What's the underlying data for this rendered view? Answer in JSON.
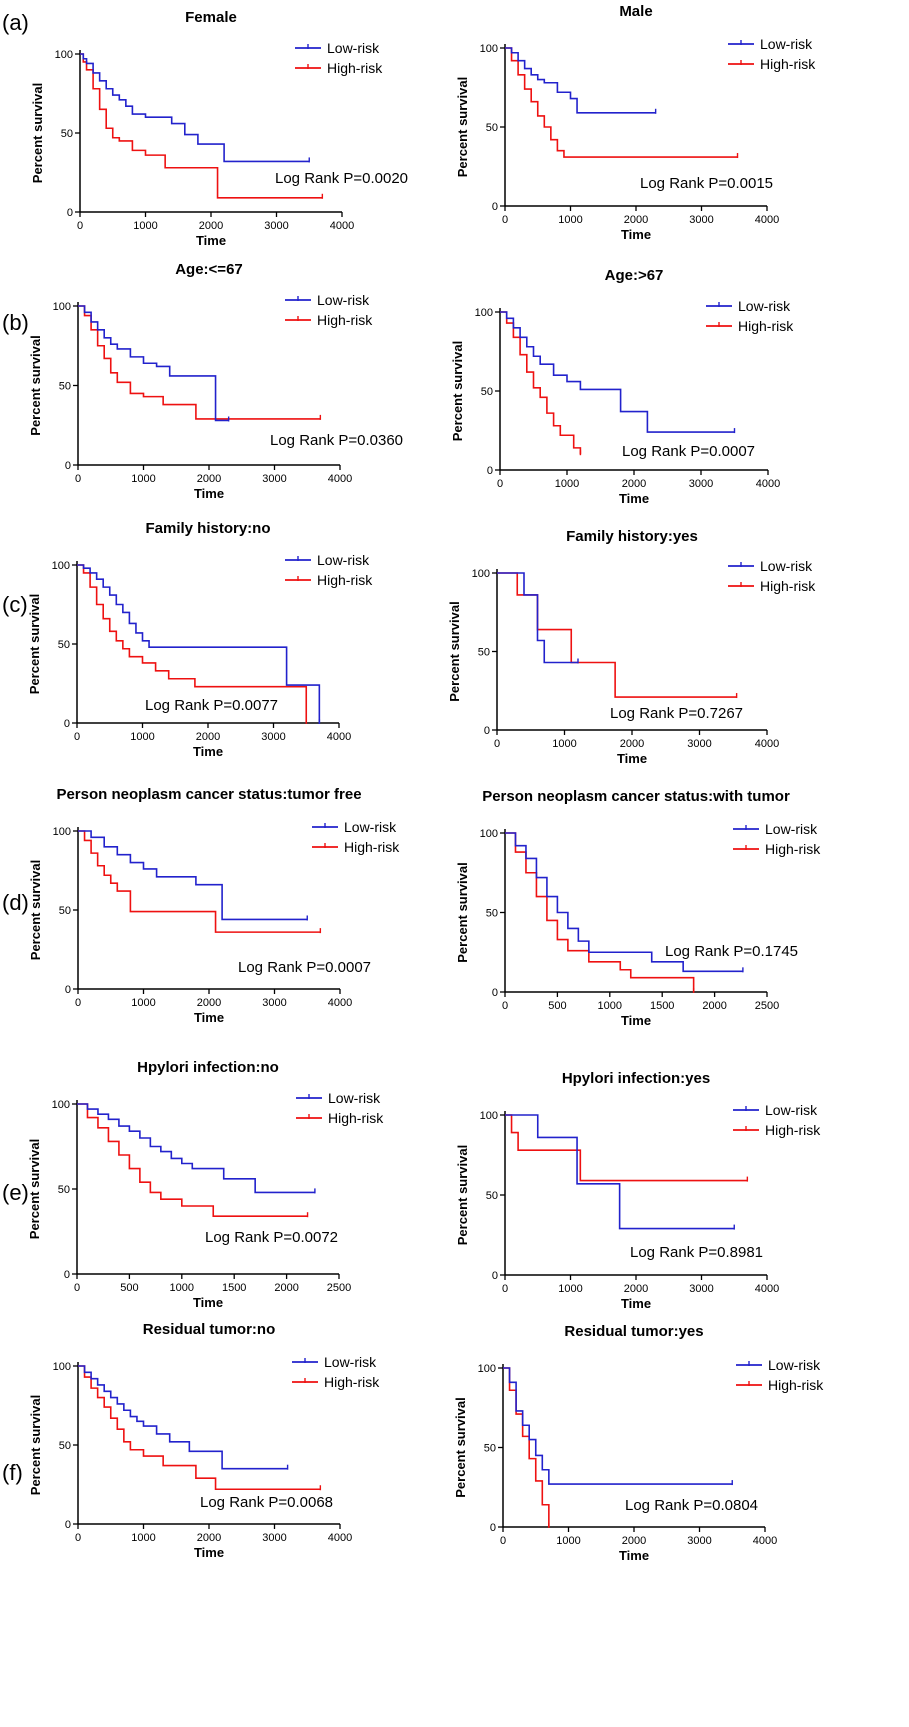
{
  "legend_labels": {
    "low": "Low-risk",
    "high": "High-risk"
  },
  "colors": {
    "low": "#2222cc",
    "high": "#ee1111",
    "axis": "#000000"
  },
  "row_labels": [
    "(a)",
    "(b)",
    "(c)",
    "(d)",
    "(e)",
    "(f)"
  ],
  "chart_data": [
    {
      "type": "line",
      "title": "Female",
      "xlabel": "Time",
      "ylabel": "Percent survival",
      "xlim": [
        0,
        4000
      ],
      "ylim": [
        0,
        100
      ],
      "xticks": [
        0,
        1000,
        2000,
        3000,
        4000
      ],
      "yticks": [
        0,
        50,
        100
      ],
      "legend_position": "top-right",
      "annotation": "Log Rank P=0.0020",
      "series": [
        {
          "name": "Low-risk",
          "x": [
            0,
            50,
            100,
            200,
            300,
            400,
            500,
            600,
            700,
            800,
            1000,
            1200,
            1400,
            1600,
            1800,
            2200,
            3500
          ],
          "y": [
            100,
            97,
            94,
            88,
            83,
            78,
            74,
            71,
            67,
            62,
            60,
            60,
            56,
            49,
            43,
            32,
            32
          ]
        },
        {
          "name": "High-risk",
          "x": [
            0,
            50,
            100,
            200,
            300,
            400,
            500,
            600,
            800,
            1000,
            1300,
            1800,
            2100,
            3700
          ],
          "y": [
            100,
            95,
            90,
            78,
            65,
            53,
            47,
            45,
            39,
            36,
            28,
            28,
            9,
            9
          ]
        }
      ]
    },
    {
      "type": "line",
      "title": "Male",
      "xlabel": "Time",
      "ylabel": "Percent survival",
      "xlim": [
        0,
        4000
      ],
      "ylim": [
        0,
        100
      ],
      "xticks": [
        0,
        1000,
        2000,
        3000,
        4000
      ],
      "yticks": [
        0,
        50,
        100
      ],
      "legend_position": "top-right",
      "annotation": "Log Rank P=0.0015",
      "series": [
        {
          "name": "Low-risk",
          "x": [
            0,
            100,
            200,
            300,
            400,
            500,
            600,
            800,
            1000,
            1100,
            2300
          ],
          "y": [
            100,
            97,
            92,
            87,
            83,
            80,
            78,
            72,
            68,
            59,
            59
          ]
        },
        {
          "name": "High-risk",
          "x": [
            0,
            100,
            200,
            300,
            400,
            500,
            600,
            700,
            800,
            900,
            3550
          ],
          "y": [
            100,
            92,
            83,
            74,
            66,
            57,
            50,
            42,
            35,
            31,
            31
          ]
        }
      ]
    },
    {
      "type": "line",
      "title": "Age:<=67",
      "xlabel": "Time",
      "ylabel": "Percent survival",
      "xlim": [
        0,
        4000
      ],
      "ylim": [
        0,
        100
      ],
      "xticks": [
        0,
        1000,
        2000,
        3000,
        4000
      ],
      "yticks": [
        0,
        50,
        100
      ],
      "legend_position": "top-right",
      "annotation": "Log Rank P=0.0360",
      "series": [
        {
          "name": "Low-risk",
          "x": [
            0,
            100,
            200,
            300,
            400,
            500,
            600,
            800,
            1000,
            1200,
            1400,
            2100,
            2300
          ],
          "y": [
            100,
            96,
            90,
            85,
            80,
            76,
            73,
            68,
            64,
            62,
            56,
            28,
            28
          ]
        },
        {
          "name": "High-risk",
          "x": [
            0,
            100,
            200,
            300,
            400,
            500,
            600,
            800,
            1000,
            1300,
            1800,
            3700
          ],
          "y": [
            100,
            94,
            85,
            75,
            67,
            58,
            52,
            45,
            43,
            38,
            29,
            29
          ]
        }
      ]
    },
    {
      "type": "line",
      "title": "Age:>67",
      "xlabel": "Time",
      "ylabel": "Percent survival",
      "xlim": [
        0,
        4000
      ],
      "ylim": [
        0,
        100
      ],
      "xticks": [
        0,
        1000,
        2000,
        3000,
        4000
      ],
      "yticks": [
        0,
        50,
        100
      ],
      "legend_position": "top-right",
      "annotation": "Log Rank P=0.0007",
      "series": [
        {
          "name": "Low-risk",
          "x": [
            0,
            100,
            200,
            300,
            400,
            500,
            600,
            800,
            1000,
            1200,
            1700,
            1800,
            2200,
            3500
          ],
          "y": [
            100,
            96,
            90,
            84,
            78,
            72,
            67,
            60,
            56,
            51,
            51,
            37,
            24,
            24
          ]
        },
        {
          "name": "High-risk",
          "x": [
            0,
            100,
            200,
            300,
            400,
            500,
            600,
            700,
            800,
            900,
            1100,
            1200
          ],
          "y": [
            100,
            93,
            84,
            73,
            62,
            52,
            46,
            36,
            28,
            22,
            14,
            10
          ]
        }
      ]
    },
    {
      "type": "line",
      "title": "Family history:no",
      "xlabel": "Time",
      "ylabel": "Percent survival",
      "xlim": [
        0,
        4000
      ],
      "ylim": [
        0,
        100
      ],
      "xticks": [
        0,
        1000,
        2000,
        3000,
        4000
      ],
      "yticks": [
        0,
        50,
        100
      ],
      "legend_position": "top-right",
      "annotation": "Log Rank P=0.0077",
      "series": [
        {
          "name": "Low-risk",
          "x": [
            0,
            100,
            200,
            300,
            400,
            500,
            600,
            700,
            800,
            900,
            1000,
            1100,
            3200,
            3700
          ],
          "y": [
            100,
            98,
            95,
            91,
            86,
            81,
            75,
            70,
            63,
            57,
            52,
            48,
            24,
            0
          ]
        },
        {
          "name": "High-risk",
          "x": [
            0,
            100,
            200,
            300,
            400,
            500,
            600,
            700,
            800,
            1000,
            1200,
            1400,
            1800,
            3500
          ],
          "y": [
            100,
            95,
            86,
            75,
            66,
            58,
            52,
            47,
            42,
            38,
            33,
            28,
            23,
            0
          ]
        }
      ]
    },
    {
      "type": "line",
      "title": "Family history:yes",
      "xlabel": "Time",
      "ylabel": "Percent survival",
      "xlim": [
        0,
        4000
      ],
      "ylim": [
        0,
        100
      ],
      "xticks": [
        0,
        1000,
        2000,
        3000,
        4000
      ],
      "yticks": [
        0,
        50,
        100
      ],
      "legend_position": "top-right",
      "annotation": "Log Rank P=0.7267",
      "series": [
        {
          "name": "Low-risk",
          "x": [
            0,
            400,
            600,
            700,
            1200
          ],
          "y": [
            100,
            86,
            57,
            43,
            43
          ]
        },
        {
          "name": "High-risk",
          "x": [
            0,
            300,
            600,
            1100,
            1750,
            3550
          ],
          "y": [
            100,
            86,
            64,
            43,
            21,
            21
          ]
        }
      ]
    },
    {
      "type": "line",
      "title": "Person neoplasm cancer status:tumor free",
      "xlabel": "Time",
      "ylabel": "Percent survival",
      "xlim": [
        0,
        4000
      ],
      "ylim": [
        0,
        100
      ],
      "xticks": [
        0,
        1000,
        2000,
        3000,
        4000
      ],
      "yticks": [
        0,
        50,
        100
      ],
      "legend_position": "top-right",
      "annotation": "Log Rank P=0.0007",
      "series": [
        {
          "name": "Low-risk",
          "x": [
            0,
            200,
            400,
            600,
            800,
            1000,
            1200,
            1800,
            2200,
            3500
          ],
          "y": [
            100,
            96,
            90,
            85,
            80,
            76,
            71,
            66,
            44,
            44
          ]
        },
        {
          "name": "High-risk",
          "x": [
            0,
            100,
            200,
            300,
            400,
            500,
            600,
            800,
            2100,
            3700
          ],
          "y": [
            100,
            94,
            86,
            78,
            72,
            67,
            62,
            49,
            36,
            36
          ]
        }
      ]
    },
    {
      "type": "line",
      "title": "Person neoplasm cancer status:with tumor",
      "xlabel": "Time",
      "ylabel": "Percent survival",
      "xlim": [
        0,
        2500
      ],
      "ylim": [
        0,
        100
      ],
      "xticks": [
        0,
        500,
        1000,
        1500,
        2000,
        2500
      ],
      "yticks": [
        0,
        50,
        100
      ],
      "legend_position": "top-right",
      "annotation": "Log Rank P=0.1745",
      "series": [
        {
          "name": "Low-risk",
          "x": [
            0,
            100,
            200,
            300,
            400,
            500,
            600,
            700,
            800,
            1400,
            1700,
            2270
          ],
          "y": [
            100,
            92,
            84,
            72,
            60,
            50,
            40,
            32,
            25,
            19,
            13,
            13
          ]
        },
        {
          "name": "High-risk",
          "x": [
            0,
            100,
            200,
            300,
            400,
            500,
            600,
            800,
            1100,
            1200,
            1800
          ],
          "y": [
            100,
            88,
            75,
            60,
            45,
            33,
            26,
            19,
            14,
            9,
            0
          ]
        }
      ]
    },
    {
      "type": "line",
      "title": "Hpylori infection:no",
      "xlabel": "Time",
      "ylabel": "Percent survival",
      "xlim": [
        0,
        2500
      ],
      "ylim": [
        0,
        100
      ],
      "xticks": [
        0,
        500,
        1000,
        1500,
        2000,
        2500
      ],
      "yticks": [
        0,
        50,
        100
      ],
      "legend_position": "top-right",
      "annotation": "Log Rank P=0.0072",
      "series": [
        {
          "name": "Low-risk",
          "x": [
            0,
            100,
            200,
            300,
            400,
            500,
            600,
            700,
            800,
            900,
            1000,
            1100,
            1400,
            1700,
            2270
          ],
          "y": [
            100,
            97,
            94,
            91,
            87,
            84,
            80,
            75,
            72,
            68,
            65,
            62,
            56,
            48,
            48
          ]
        },
        {
          "name": "High-risk",
          "x": [
            0,
            100,
            200,
            300,
            400,
            500,
            600,
            700,
            800,
            1000,
            1300,
            2200
          ],
          "y": [
            100,
            92,
            86,
            78,
            70,
            62,
            54,
            48,
            44,
            40,
            34,
            34
          ]
        }
      ]
    },
    {
      "type": "line",
      "title": "Hpylori infection:yes",
      "xlabel": "Time",
      "ylabel": "Percent survival",
      "xlim": [
        0,
        4000
      ],
      "ylim": [
        0,
        100
      ],
      "xticks": [
        0,
        1000,
        2000,
        3000,
        4000
      ],
      "yticks": [
        0,
        50,
        100
      ],
      "legend_position": "top-right",
      "annotation": "Log Rank P=0.8981",
      "series": [
        {
          "name": "Low-risk",
          "x": [
            0,
            500,
            1100,
            1750,
            3500
          ],
          "y": [
            100,
            86,
            57,
            29,
            29
          ]
        },
        {
          "name": "High-risk",
          "x": [
            0,
            100,
            200,
            1150,
            3700
          ],
          "y": [
            100,
            89,
            78,
            59,
            59
          ]
        }
      ]
    },
    {
      "type": "line",
      "title": "Residual tumor:no",
      "xlabel": "Time",
      "ylabel": "Percent survival",
      "xlim": [
        0,
        4000
      ],
      "ylim": [
        0,
        100
      ],
      "xticks": [
        0,
        1000,
        2000,
        3000,
        4000
      ],
      "yticks": [
        0,
        50,
        100
      ],
      "legend_position": "top-right",
      "annotation": "Log Rank P=0.0068",
      "series": [
        {
          "name": "Low-risk",
          "x": [
            0,
            100,
            200,
            300,
            400,
            500,
            600,
            700,
            800,
            900,
            1000,
            1200,
            1400,
            1700,
            2200,
            3200
          ],
          "y": [
            100,
            96,
            92,
            88,
            84,
            80,
            76,
            72,
            68,
            65,
            62,
            57,
            52,
            46,
            35,
            35
          ]
        },
        {
          "name": "High-risk",
          "x": [
            0,
            100,
            200,
            300,
            400,
            500,
            600,
            700,
            800,
            1000,
            1300,
            1800,
            2100,
            3700
          ],
          "y": [
            100,
            93,
            86,
            80,
            74,
            67,
            60,
            52,
            47,
            43,
            37,
            29,
            22,
            22
          ]
        }
      ]
    },
    {
      "type": "line",
      "title": "Residual tumor:yes",
      "xlabel": "Time",
      "ylabel": "Percent survival",
      "xlim": [
        0,
        4000
      ],
      "ylim": [
        0,
        100
      ],
      "xticks": [
        0,
        1000,
        2000,
        3000,
        4000
      ],
      "yticks": [
        0,
        50,
        100
      ],
      "legend_position": "top-right",
      "annotation": "Log Rank P=0.0804",
      "series": [
        {
          "name": "Low-risk",
          "x": [
            0,
            100,
            200,
            300,
            400,
            500,
            600,
            700,
            3500
          ],
          "y": [
            100,
            91,
            73,
            64,
            55,
            45,
            36,
            27,
            27
          ]
        },
        {
          "name": "High-risk",
          "x": [
            0,
            100,
            200,
            300,
            400,
            500,
            600,
            700
          ],
          "y": [
            100,
            86,
            71,
            57,
            43,
            29,
            14,
            0
          ]
        }
      ]
    }
  ]
}
